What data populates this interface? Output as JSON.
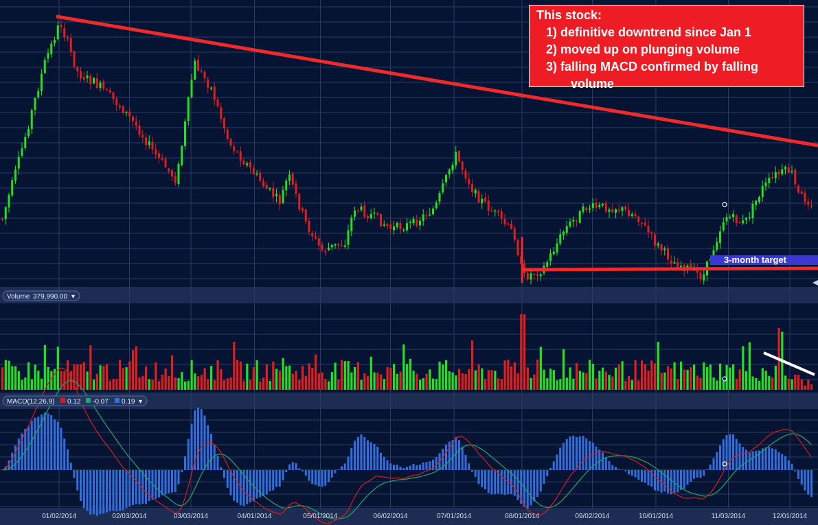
{
  "annotation": {
    "title": "This stock:",
    "item1": "1) definitive downtrend since Jan 1",
    "item2": "2) moved up on plunging volume",
    "item3": "3) falling MACD confirmed by falling",
    "item3_cont": "volume"
  },
  "target_label": "3-month target",
  "volume_pill": {
    "label": "Volume",
    "value": "379,990.00"
  },
  "macd_pill": {
    "label": "MACD(12,26,9)",
    "v1": "0.12",
    "v2": "-0.07",
    "v3": "0.19"
  },
  "colors": {
    "up": "#22e022",
    "down": "#e01e1e",
    "trend": "#ee2a2a",
    "macd_line": "#d42020",
    "signal_line": "#1aa86a",
    "histogram": "#2f6fe0",
    "target_band": "#3a3ad0"
  },
  "chart_data": [
    {
      "type": "candlestick",
      "title": "",
      "x_tick_labels": [
        "01/02/2014",
        "02/03/2014",
        "03/03/2014",
        "04/01/2014",
        "05/01/2014",
        "06/02/2014",
        "07/01/2014",
        "08/01/2014",
        "09/02/2014",
        "10/01/2014",
        "11/03/2014",
        "12/01/2014"
      ],
      "shape_points": [
        [
          "2013-12-06",
          0.22
        ],
        [
          "2013-12-14",
          0.45
        ],
        [
          "2013-12-26",
          0.82
        ],
        [
          "2014-01-02",
          0.97
        ],
        [
          "2014-01-10",
          0.78
        ],
        [
          "2014-01-20",
          0.73
        ],
        [
          "2014-01-30",
          0.65
        ],
        [
          "2014-02-06",
          0.58
        ],
        [
          "2014-02-14",
          0.48
        ],
        [
          "2014-02-24",
          0.38
        ],
        [
          "2014-03-01",
          0.65
        ],
        [
          "2014-03-04",
          0.82
        ],
        [
          "2014-03-12",
          0.72
        ],
        [
          "2014-03-20",
          0.52
        ],
        [
          "2014-03-30",
          0.42
        ],
        [
          "2014-04-06",
          0.35
        ],
        [
          "2014-04-12",
          0.3
        ],
        [
          "2014-04-16",
          0.4
        ],
        [
          "2014-04-24",
          0.22
        ],
        [
          "2014-05-01",
          0.12
        ],
        [
          "2014-05-12",
          0.15
        ],
        [
          "2014-05-16",
          0.28
        ],
        [
          "2014-05-24",
          0.25
        ],
        [
          "2014-06-02",
          0.2
        ],
        [
          "2014-06-12",
          0.22
        ],
        [
          "2014-06-22",
          0.28
        ],
        [
          "2014-07-01",
          0.48
        ],
        [
          "2014-07-10",
          0.33
        ],
        [
          "2014-07-20",
          0.25
        ],
        [
          "2014-07-28",
          0.18
        ],
        [
          "2014-08-01",
          0.02
        ],
        [
          "2014-08-10",
          0.05
        ],
        [
          "2014-08-20",
          0.2
        ],
        [
          "2014-08-30",
          0.28
        ],
        [
          "2014-09-12",
          0.28
        ],
        [
          "2014-09-22",
          0.25
        ],
        [
          "2014-09-30",
          0.15
        ],
        [
          "2014-10-08",
          0.08
        ],
        [
          "2014-10-16",
          0.05
        ],
        [
          "2014-10-22",
          0.02
        ],
        [
          "2014-11-01",
          0.25
        ],
        [
          "2014-11-10",
          0.22
        ],
        [
          "2014-11-18",
          0.35
        ],
        [
          "2014-11-24",
          0.4
        ],
        [
          "2014-12-01",
          0.42
        ],
        [
          "2014-12-04",
          0.33
        ],
        [
          "2014-12-10",
          0.3
        ],
        [
          "2014-12-12",
          0.28
        ]
      ],
      "overlays": {
        "trendline": {
          "from": [
            "2014-01-02",
            "high"
          ],
          "to": [
            "2014-12-12",
            "resistance"
          ]
        },
        "support_line": {
          "level": "3-month target",
          "from": "2014-08-01",
          "to": "2014-12-12"
        }
      }
    },
    {
      "type": "bar",
      "name": "Volume",
      "value_shown": "379,990.00",
      "spikes": [
        [
          "2014-08-01",
          1.0
        ],
        [
          "2014-11-26",
          0.95
        ]
      ],
      "trend": [
        [
          "2014-12-01",
          "high"
        ],
        [
          "2014-12-12",
          "low"
        ]
      ]
    },
    {
      "type": "line",
      "name": "MACD(12,26,9)",
      "values_shown": [
        "0.12",
        "-0.07",
        "0.19"
      ],
      "series": [
        "MACD",
        "Signal",
        "Histogram"
      ]
    }
  ]
}
